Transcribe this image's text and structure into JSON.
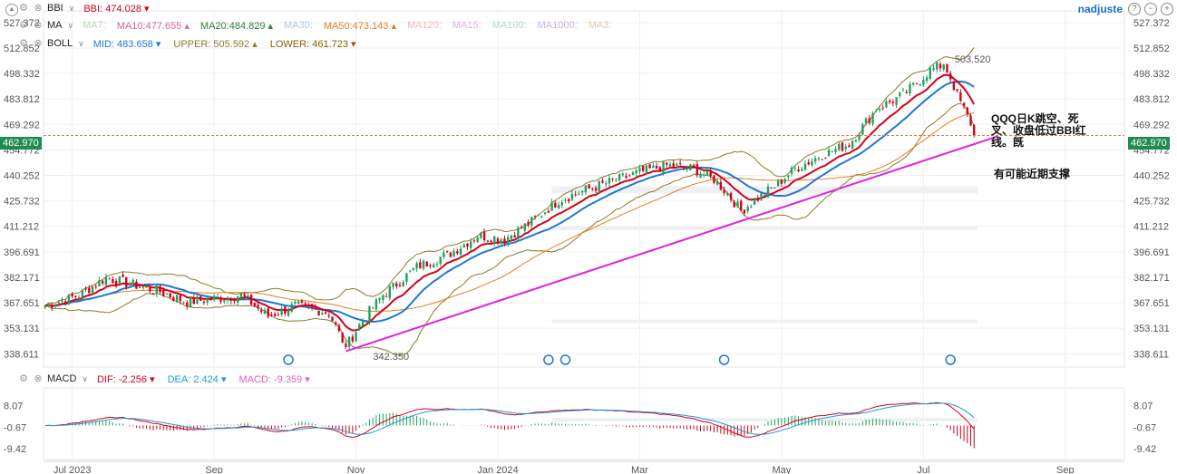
{
  "header": {
    "user": "nadjuste",
    "bbi": {
      "name": "BBI",
      "label": "BBI:",
      "value": "474.028",
      "color": "#d0021b"
    },
    "ma": {
      "name": "MA",
      "items": [
        {
          "label": "MA7:",
          "value": "",
          "color": "#b0e0b0"
        },
        {
          "label": "MA10:",
          "value": "477.655",
          "color": "#e060a0"
        },
        {
          "label": "MA20:",
          "value": "484.829",
          "color": "#2e7d32"
        },
        {
          "label": "MA30:",
          "value": "",
          "color": "#a8c8e8"
        },
        {
          "label": "MA50:",
          "value": "473.143",
          "color": "#e67e22"
        },
        {
          "label": "MA120:",
          "value": "",
          "color": "#f4b8b8"
        },
        {
          "label": "MA15:",
          "value": "",
          "color": "#e8a8e8"
        },
        {
          "label": "MA100:",
          "value": "",
          "color": "#a8e0c8"
        },
        {
          "label": "MA1000:",
          "value": "",
          "color": "#c8b0e8"
        },
        {
          "label": "MA3:",
          "value": "",
          "color": "#e8c8a8"
        }
      ]
    },
    "boll": {
      "name": "BOLL",
      "mid": {
        "label": "MID:",
        "value": "483.658",
        "color": "#1f78d1"
      },
      "upper": {
        "label": "UPPER:",
        "value": "505.592",
        "color": "#8a7a2a"
      },
      "lower": {
        "label": "LOWER:",
        "value": "461.723",
        "color": "#8a5a00"
      }
    },
    "macd": {
      "name": "MACD",
      "dif": {
        "label": "DIF:",
        "value": "-2.256",
        "color": "#d0021b"
      },
      "dea": {
        "label": "DEA:",
        "value": "2.424",
        "color": "#1f9bd1"
      },
      "macd": {
        "label": "MACD:",
        "value": "-9.359",
        "color": "#e060c0"
      }
    }
  },
  "current_price": "462.970",
  "annotations": {
    "high_label": "503.520",
    "low_label": "342.350",
    "note1_line1": "QQQ日K跳空、死",
    "note1_line2": "叉、收盘低过BBI红",
    "note1_line3": "线。旣",
    "note2": "有可能近期支撑"
  },
  "chart_data": {
    "type": "candlestick",
    "symbol": "QQQ",
    "y_axis_ticks": [
      "527.372",
      "512.852",
      "498.332",
      "483.812",
      "469.292",
      "454.772",
      "440.252",
      "425.732",
      "411.212",
      "396.691",
      "382.171",
      "367.651",
      "353.131",
      "338.611"
    ],
    "y_axis_values": [
      527.372,
      512.852,
      498.332,
      483.812,
      469.292,
      454.772,
      440.252,
      425.732,
      411.212,
      396.691,
      382.171,
      367.651,
      353.131,
      338.611
    ],
    "ylim": [
      331,
      534
    ],
    "x_axis_ticks": [
      "Jul 2023",
      "Sep",
      "Nov",
      "Jan 2024",
      "Mar",
      "May",
      "Jul",
      "Sep"
    ],
    "x_tick_index": [
      8,
      50,
      92,
      134,
      176,
      218,
      260,
      302
    ],
    "n_days": 320,
    "n_bars": 276,
    "price_keypoints": [
      [
        0,
        366
      ],
      [
        10,
        372
      ],
      [
        18,
        382
      ],
      [
        26,
        378
      ],
      [
        34,
        374
      ],
      [
        42,
        368
      ],
      [
        50,
        370
      ],
      [
        58,
        372
      ],
      [
        66,
        360
      ],
      [
        74,
        366
      ],
      [
        84,
        362
      ],
      [
        89,
        342.35
      ],
      [
        94,
        358
      ],
      [
        100,
        372
      ],
      [
        110,
        388
      ],
      [
        120,
        396
      ],
      [
        128,
        406
      ],
      [
        136,
        404
      ],
      [
        144,
        414
      ],
      [
        152,
        426
      ],
      [
        160,
        432
      ],
      [
        168,
        437
      ],
      [
        176,
        442
      ],
      [
        184,
        446
      ],
      [
        192,
        444
      ],
      [
        198,
        438
      ],
      [
        202,
        430
      ],
      [
        206,
        420
      ],
      [
        210,
        426
      ],
      [
        216,
        434
      ],
      [
        222,
        444
      ],
      [
        230,
        452
      ],
      [
        238,
        458
      ],
      [
        246,
        478
      ],
      [
        254,
        486
      ],
      [
        262,
        500
      ],
      [
        266,
        503.52
      ],
      [
        268,
        496
      ],
      [
        270,
        486
      ],
      [
        272,
        478
      ],
      [
        274,
        470
      ],
      [
        275,
        462.97
      ]
    ],
    "trendline": {
      "from": {
        "index": 89,
        "value": 340
      },
      "to": {
        "index": 282,
        "value": 462.5
      },
      "color": "#e020e0"
    },
    "macd_panel": {
      "ticks": [
        "8.07",
        "-0.67",
        "-9.42"
      ],
      "tick_values": [
        8.07,
        -0.67,
        -9.42
      ],
      "ylim": [
        -13,
        13
      ]
    }
  }
}
